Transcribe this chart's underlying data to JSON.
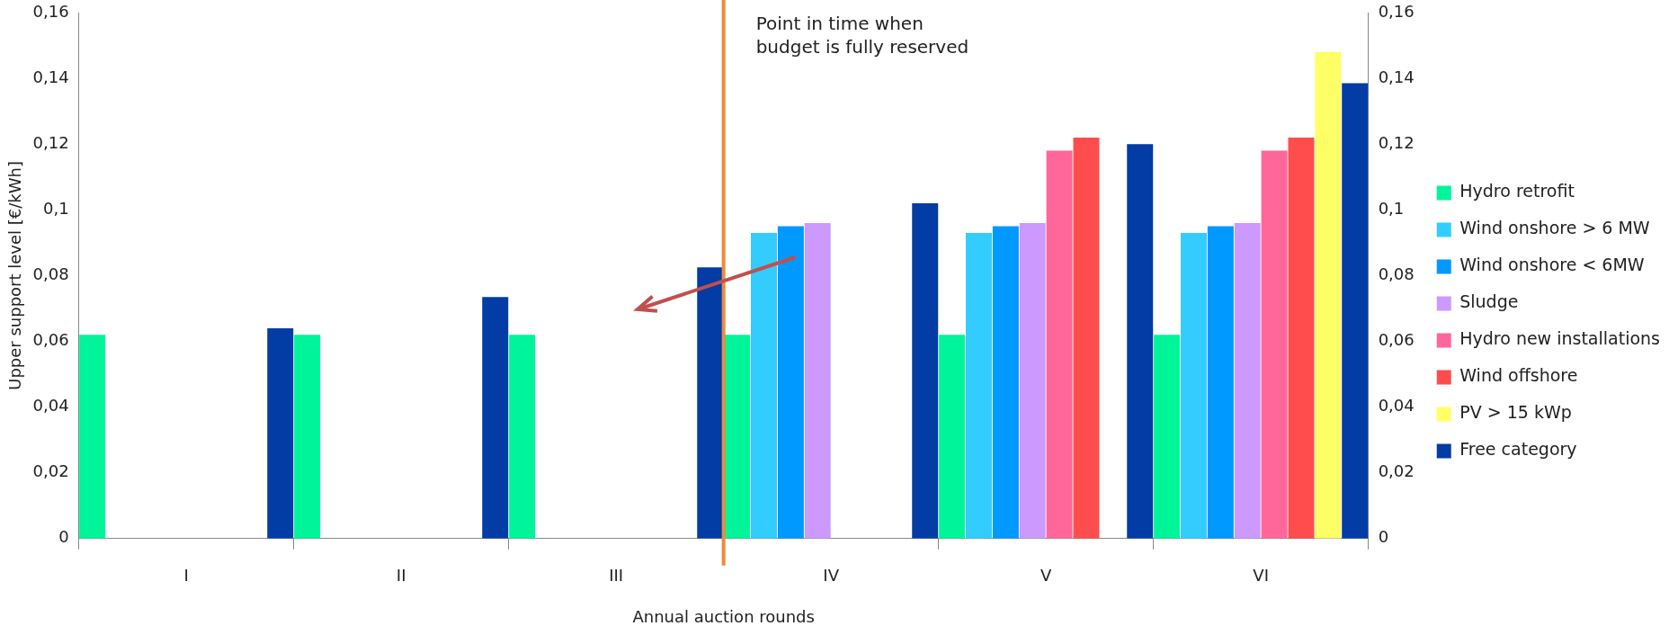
{
  "chart_data": {
    "type": "bar",
    "xlabel": "Annual auction rounds",
    "ylabel": "Upper support level [€/kWh]",
    "categories": [
      "I",
      "II",
      "III",
      "IV",
      "V",
      "VI"
    ],
    "series": [
      {
        "name": "Hydro retrofit",
        "color": "#00f59a",
        "values": [
          0.062,
          0.062,
          0.062,
          0.062,
          0.062,
          0.062
        ]
      },
      {
        "name": "Wind onshore > 6 MW",
        "color": "#33ccff",
        "values": [
          null,
          null,
          null,
          0.093,
          0.093,
          0.093
        ]
      },
      {
        "name": "Wind onshore < 6MW",
        "color": "#0099ff",
        "values": [
          null,
          null,
          null,
          0.095,
          0.095,
          0.095
        ]
      },
      {
        "name": "Sludge",
        "color": "#cc99ff",
        "values": [
          null,
          null,
          null,
          0.096,
          0.096,
          0.096
        ]
      },
      {
        "name": "Hydro new installations",
        "color": "#ff6699",
        "values": [
          null,
          null,
          null,
          null,
          0.118,
          0.118
        ]
      },
      {
        "name": "Wind offshore",
        "color": "#ff4d4d",
        "values": [
          null,
          null,
          null,
          null,
          0.122,
          0.122
        ]
      },
      {
        "name": "PV > 15 kWp",
        "color": "#ffff66",
        "values": [
          null,
          null,
          null,
          null,
          null,
          0.148
        ]
      },
      {
        "name": "Free category",
        "color": "#033ca4",
        "values": [
          0.064,
          0.0735,
          0.0825,
          0.102,
          0.12,
          0.1385
        ]
      }
    ],
    "ylim": [
      0,
      0.16
    ],
    "yticks": [
      {
        "value": 0,
        "label": "0"
      },
      {
        "value": 0.02,
        "label": "0,02"
      },
      {
        "value": 0.04,
        "label": "0,04"
      },
      {
        "value": 0.06,
        "label": "0,06"
      },
      {
        "value": 0.08,
        "label": "0,08"
      },
      {
        "value": 0.1,
        "label": "0,1"
      },
      {
        "value": 0.12,
        "label": "0,12"
      },
      {
        "value": 0.14,
        "label": "0,14"
      },
      {
        "value": 0.16,
        "label": "0,16"
      }
    ],
    "y2lim": [
      0,
      0.16
    ],
    "y2ticks": [
      {
        "value": 0,
        "label": "0"
      },
      {
        "value": 0.02,
        "label": "0,02"
      },
      {
        "value": 0.04,
        "label": "0,04"
      },
      {
        "value": 0.06,
        "label": "0,06"
      },
      {
        "value": 0.08,
        "label": "0,08"
      },
      {
        "value": 0.1,
        "label": "0,1"
      },
      {
        "value": 0.12,
        "label": "0,12"
      },
      {
        "value": 0.14,
        "label": "0,14"
      },
      {
        "value": 0.16,
        "label": "0,16"
      }
    ],
    "ref_lines": [
      {
        "axis": "x",
        "value": "IV",
        "label": "Point in time when\nbudget is fully reserved",
        "color": "#f08a3c"
      }
    ],
    "legend": "right",
    "grid": false
  }
}
